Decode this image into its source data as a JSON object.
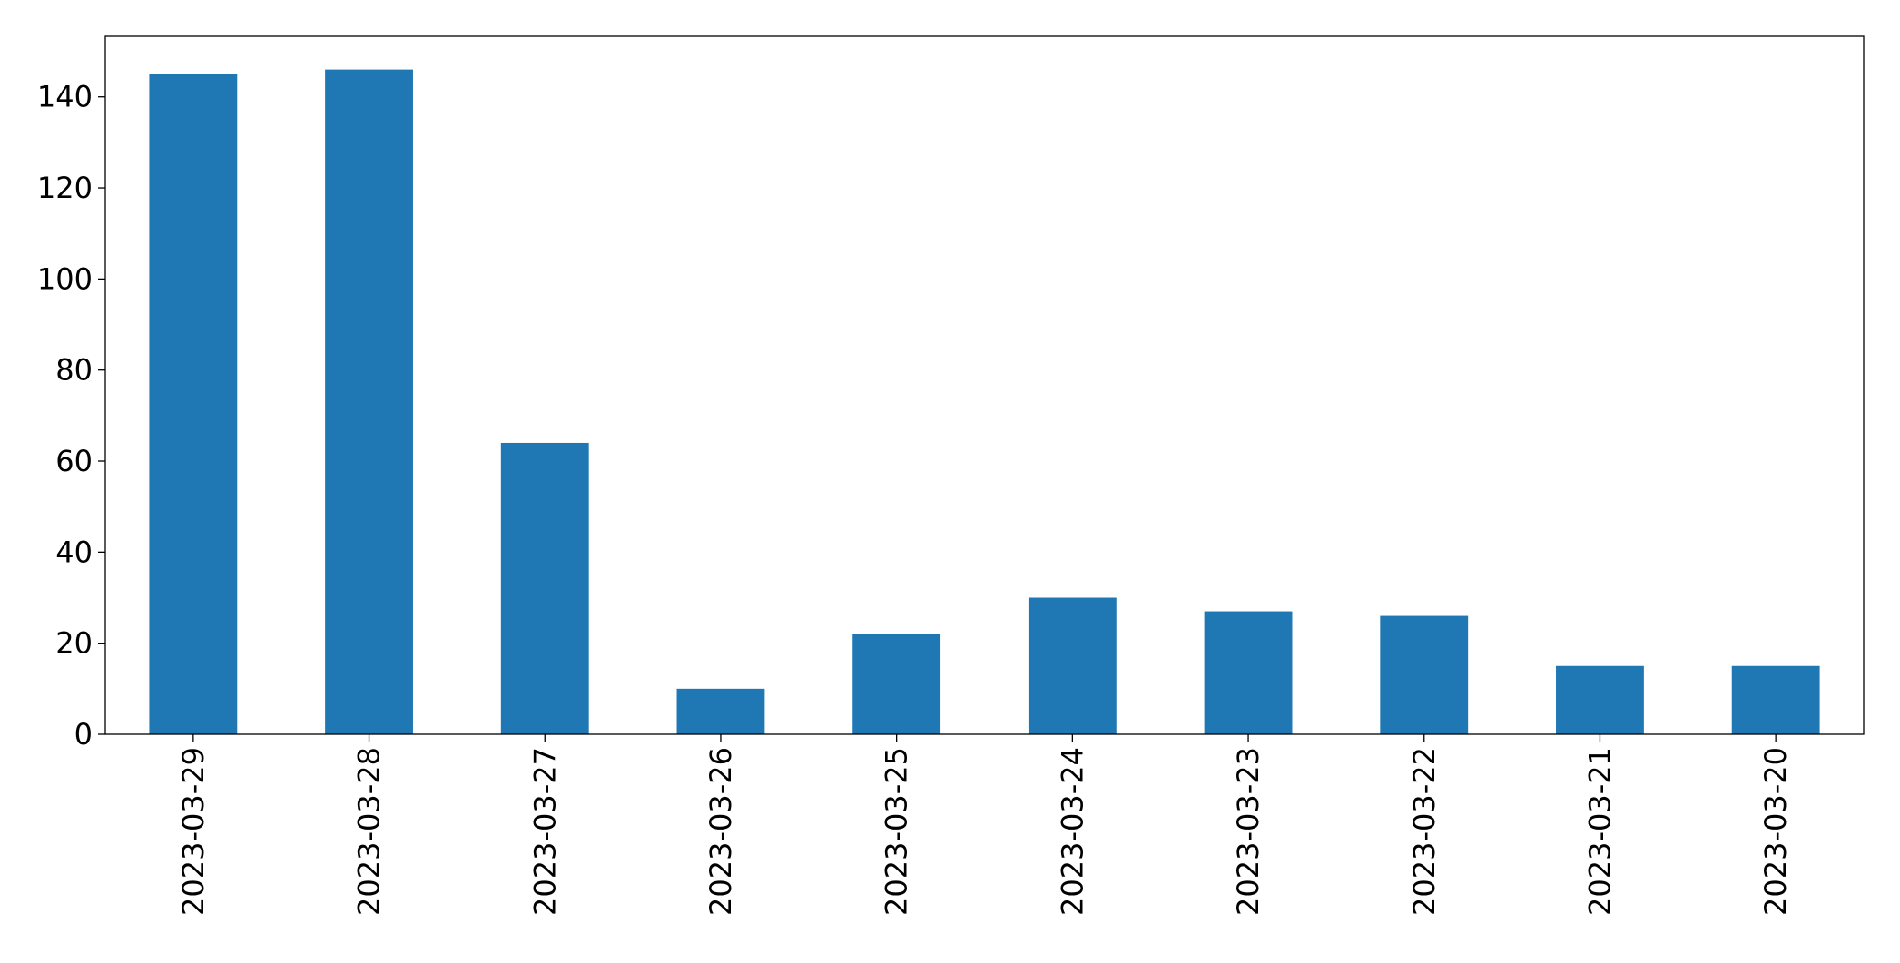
{
  "chart_data": {
    "type": "bar",
    "categories": [
      "2023-03-29",
      "2023-03-28",
      "2023-03-27",
      "2023-03-26",
      "2023-03-25",
      "2023-03-24",
      "2023-03-23",
      "2023-03-22",
      "2023-03-21",
      "2023-03-20"
    ],
    "values": [
      145,
      146,
      64,
      10,
      22,
      30,
      27,
      26,
      15,
      15
    ],
    "color": "#1f77b4",
    "ylim": [
      0,
      153.3
    ],
    "yticks": [
      0,
      20,
      40,
      60,
      80,
      100,
      120,
      140
    ],
    "grid": false
  }
}
